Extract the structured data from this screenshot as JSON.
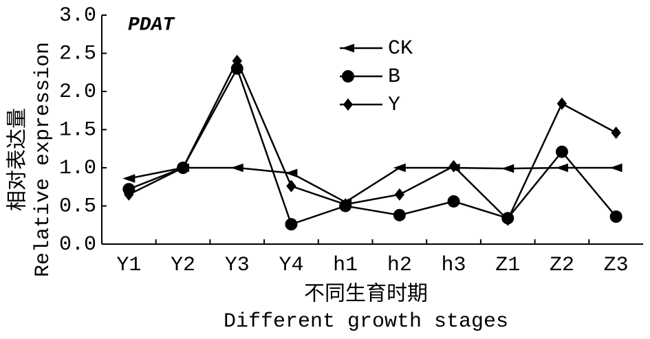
{
  "chart_data": {
    "type": "line",
    "title": "PDAT",
    "ylabel": [
      "相对表达量",
      "Relative expression"
    ],
    "xlabel": [
      "不同生育时期",
      "Different growth stages"
    ],
    "categories": [
      "Y1",
      "Y2",
      "Y3",
      "Y4",
      "h1",
      "h2",
      "h3",
      "Z1",
      "Z2",
      "Z3"
    ],
    "series": [
      {
        "name": "CK",
        "color": "#000000",
        "marker": "triangle-left",
        "values": [
          0.86,
          1.0,
          1.0,
          0.93,
          0.55,
          1.0,
          1.0,
          0.99,
          1.0,
          1.0
        ]
      },
      {
        "name": "B",
        "color": "#000000",
        "marker": "circle",
        "values": [
          0.72,
          1.0,
          2.3,
          0.26,
          0.5,
          0.38,
          0.56,
          0.34,
          1.21,
          0.36
        ]
      },
      {
        "name": "Y",
        "color": "#000000",
        "marker": "diamond",
        "values": [
          0.65,
          1.0,
          2.4,
          0.76,
          0.52,
          0.65,
          1.02,
          0.32,
          1.84,
          1.46
        ]
      }
    ],
    "ylim": [
      0,
      3
    ],
    "yticks": [
      {
        "value": 0,
        "label": "0.0"
      },
      0.5,
      {
        "value": 1,
        "label": "1.0"
      },
      1.5,
      {
        "value": 2,
        "label": "2.0"
      },
      2.5,
      {
        "value": 3,
        "label": "3.0"
      }
    ]
  }
}
